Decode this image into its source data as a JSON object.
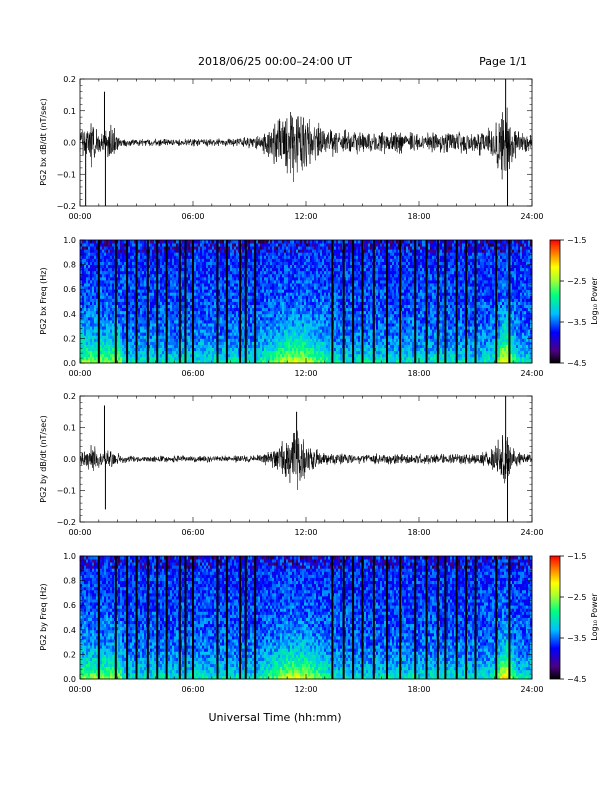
{
  "header": {
    "title": "2018/06/25  00:00–24:00 UT",
    "page": "Page 1/1"
  },
  "footer": {
    "xlabel": "Universal Time (hh:mm)"
  },
  "colors": {
    "trace": "#000000",
    "axis": "#000000",
    "background": "#ffffff",
    "colormap": [
      "#000000",
      "#4b0082",
      "#0000ff",
      "#00bfff",
      "#00ff7f",
      "#adff2f",
      "#ffff00",
      "#ff8c00",
      "#ff0000"
    ]
  },
  "chart_data": [
    {
      "type": "line",
      "ylabel": "PG2 bx dB/dt (nT/sec)",
      "xlim": [
        0,
        24
      ],
      "ylim": [
        -0.2,
        0.2
      ],
      "x_ticks": [
        "00:00",
        "06:00",
        "12:00",
        "18:00",
        "24:00"
      ],
      "y_ticks": [
        "−0.2",
        "−0.1",
        "0.0",
        "0.1",
        "0.2"
      ],
      "envelope": {
        "hours": [
          0,
          0.3,
          0.6,
          0.9,
          1.2,
          1.5,
          1.8,
          2.1,
          3,
          5,
          7,
          8.5,
          9.5,
          10,
          10.5,
          11,
          11.5,
          12,
          12.5,
          13,
          14,
          15,
          17,
          19,
          21,
          21.5,
          22,
          22.5,
          23,
          23.5,
          24
        ],
        "amplitude": [
          0.03,
          0.045,
          0.07,
          0.04,
          0.03,
          0.045,
          0.05,
          0.012,
          0.01,
          0.01,
          0.012,
          0.012,
          0.02,
          0.05,
          0.07,
          0.1,
          0.12,
          0.08,
          0.06,
          0.045,
          0.04,
          0.035,
          0.03,
          0.03,
          0.035,
          0.04,
          0.06,
          0.12,
          0.05,
          0.03,
          0.02
        ],
        "spikes": [
          {
            "hour": 0.3,
            "value": -0.2
          },
          {
            "hour": 1.3,
            "value": 0.16
          },
          {
            "hour": 1.35,
            "value": -0.2
          },
          {
            "hour": 22.6,
            "value": 0.2
          },
          {
            "hour": 22.7,
            "value": -0.2
          }
        ]
      }
    },
    {
      "type": "heatmap",
      "ylabel": "PG2 bx Freq (Hz)",
      "xlim": [
        0,
        24
      ],
      "ylim": [
        0,
        1
      ],
      "x_ticks": [
        "00:00",
        "06:00",
        "12:00",
        "18:00",
        "24:00"
      ],
      "y_ticks": [
        "0.0",
        "0.2",
        "0.4",
        "0.6",
        "0.8",
        "1.0"
      ],
      "colorbar": {
        "label": "Log₁₀ Power",
        "range": [
          -4.5,
          -1.5
        ],
        "ticks": [
          "−1.5",
          "−2.5",
          "−3.5",
          "−4.5"
        ]
      },
      "gap_hours": [
        1.0,
        1.9,
        2.5,
        3.0,
        3.6,
        4.1,
        4.6,
        5.3,
        5.6,
        6.0,
        7.3,
        7.8,
        8.5,
        8.8,
        9.3,
        13.4,
        14.0,
        14.5,
        15.0,
        15.6,
        16.3,
        17.0,
        17.8,
        18.4,
        19.0,
        19.4,
        20.0,
        20.5,
        21.0,
        22.1,
        22.8
      ]
    },
    {
      "type": "line",
      "ylabel": "PG2 by dB/dt (nT/sec)",
      "xlim": [
        0,
        24
      ],
      "ylim": [
        -0.2,
        0.2
      ],
      "x_ticks": [
        "00:00",
        "06:00",
        "12:00",
        "18:00",
        "24:00"
      ],
      "y_ticks": [
        "−0.2",
        "−0.1",
        "0.0",
        "0.1",
        "0.2"
      ],
      "envelope": {
        "hours": [
          0,
          0.3,
          0.6,
          0.9,
          1.2,
          1.5,
          1.8,
          2.1,
          3,
          5,
          7,
          8.5,
          9.5,
          10,
          10.5,
          11,
          11.5,
          12,
          12.5,
          13,
          14,
          15,
          17,
          19,
          21,
          21.5,
          22,
          22.5,
          23,
          23.5,
          24
        ],
        "amplitude": [
          0.02,
          0.03,
          0.05,
          0.03,
          0.02,
          0.04,
          0.03,
          0.012,
          0.01,
          0.01,
          0.01,
          0.01,
          0.012,
          0.02,
          0.04,
          0.07,
          0.1,
          0.05,
          0.03,
          0.02,
          0.015,
          0.015,
          0.015,
          0.015,
          0.015,
          0.02,
          0.04,
          0.1,
          0.04,
          0.02,
          0.012
        ],
        "spikes": [
          {
            "hour": 1.3,
            "value": 0.17
          },
          {
            "hour": 1.35,
            "value": -0.16
          },
          {
            "hour": 11.5,
            "value": 0.15
          },
          {
            "hour": 22.6,
            "value": 0.2
          },
          {
            "hour": 22.7,
            "value": -0.2
          }
        ]
      }
    },
    {
      "type": "heatmap",
      "ylabel": "PG2 by Freq (Hz)",
      "xlim": [
        0,
        24
      ],
      "ylim": [
        0,
        1
      ],
      "x_ticks": [
        "00:00",
        "06:00",
        "12:00",
        "18:00",
        "24:00"
      ],
      "y_ticks": [
        "0.0",
        "0.2",
        "0.4",
        "0.6",
        "0.8",
        "1.0"
      ],
      "colorbar": {
        "label": "Log₁₀ Power",
        "range": [
          -4.5,
          -1.5
        ],
        "ticks": [
          "−1.5",
          "−2.5",
          "−3.5",
          "−4.5"
        ]
      },
      "gap_hours": [
        1.0,
        1.9,
        2.5,
        3.0,
        3.6,
        4.1,
        4.6,
        5.3,
        5.6,
        6.0,
        7.3,
        7.8,
        8.5,
        8.8,
        9.3,
        13.4,
        14.0,
        14.5,
        15.0,
        15.6,
        16.3,
        17.0,
        17.8,
        18.4,
        19.0,
        19.4,
        20.0,
        20.5,
        21.0,
        22.1,
        22.8
      ]
    }
  ]
}
